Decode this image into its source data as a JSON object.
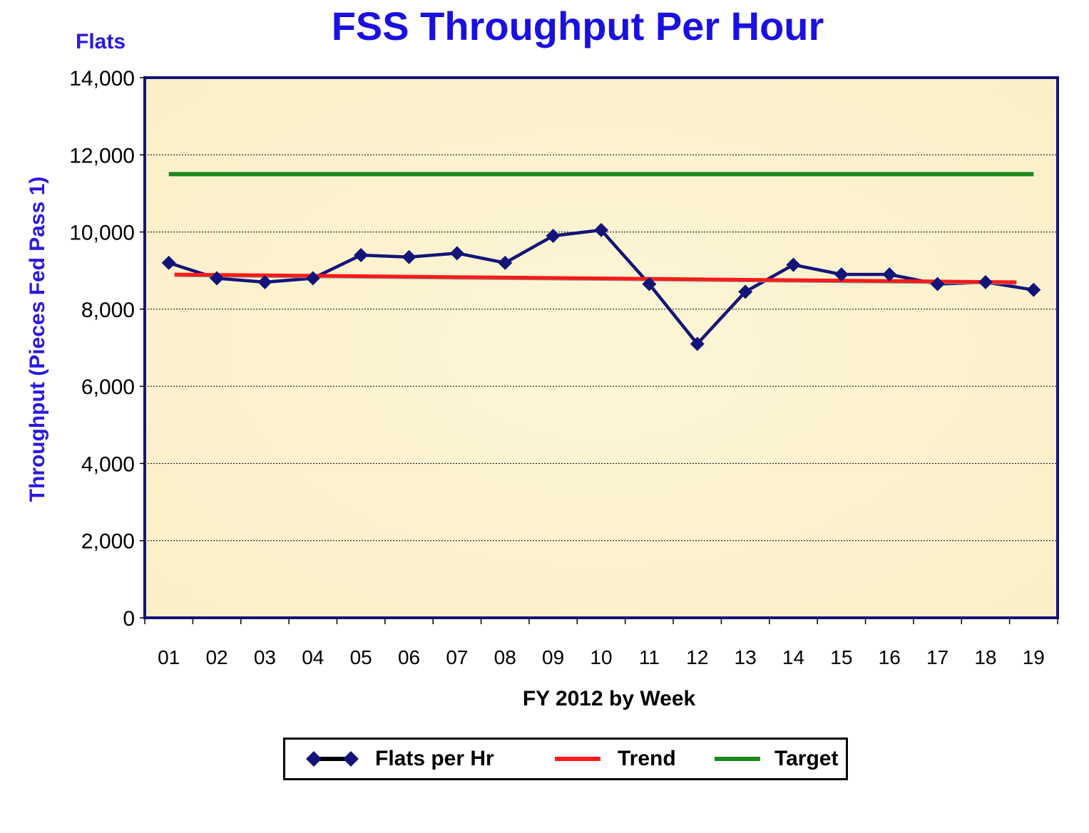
{
  "chart_data": {
    "type": "line",
    "title": "FSS Throughput Per Hour",
    "subtitle": "Flats",
    "xlabel": "FY 2012 by Week",
    "ylabel": "Throughput (Pieces Fed Pass 1)",
    "categories": [
      "01",
      "02",
      "03",
      "04",
      "05",
      "06",
      "07",
      "08",
      "09",
      "10",
      "11",
      "12",
      "13",
      "14",
      "15",
      "16",
      "17",
      "18",
      "19"
    ],
    "ylim": [
      0,
      14000
    ],
    "yticks": [
      "0",
      "2,000",
      "4,000",
      "6,000",
      "8,000",
      "10,000",
      "12,000",
      "14,000"
    ],
    "grid": true,
    "legend_position": "bottom",
    "series": [
      {
        "name": "Flats per Hr",
        "color": "#141478",
        "marker": "diamond",
        "values": [
          9200,
          8800,
          8700,
          8800,
          9400,
          9350,
          9450,
          9200,
          9900,
          10050,
          8650,
          7100,
          8450,
          9150,
          8900,
          8900,
          8650,
          8700,
          8500
        ]
      },
      {
        "name": "Trend",
        "color": "#ff1a1a",
        "values_start_end": [
          8900,
          8700
        ]
      },
      {
        "name": "Target",
        "color": "#1a8a1a",
        "value": 11500
      }
    ],
    "colors": {
      "plot_background": "#fdf6d8",
      "plot_border": "#141478"
    }
  }
}
